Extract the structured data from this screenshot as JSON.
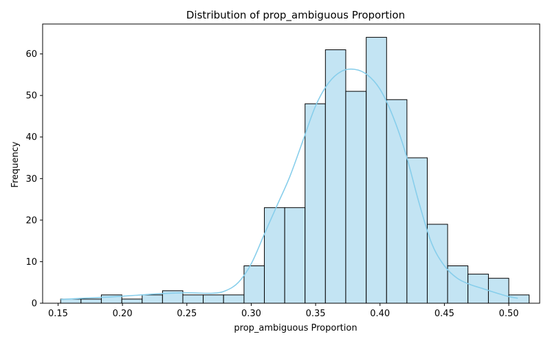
{
  "chart_data": {
    "type": "bar",
    "subtype": "histogram-with-kde",
    "title": "Distribution of prop_ambiguous Proportion",
    "xlabel": "prop_ambiguous Proportion",
    "ylabel": "Frequency",
    "xlim": [
      0.138,
      0.524
    ],
    "ylim": [
      0,
      67.2
    ],
    "x_ticks": [
      "0.15",
      "0.20",
      "0.25",
      "0.30",
      "0.35",
      "0.40",
      "0.45",
      "0.50"
    ],
    "y_ticks": [
      "0",
      "10",
      "20",
      "30",
      "40",
      "50",
      "60"
    ],
    "bin_edges": [
      0.152,
      0.1678,
      0.1836,
      0.1995,
      0.2153,
      0.2311,
      0.2469,
      0.2627,
      0.2785,
      0.2944,
      0.3102,
      0.326,
      0.3418,
      0.3576,
      0.3734,
      0.3893,
      0.4051,
      0.4209,
      0.4367,
      0.4525,
      0.4683,
      0.4842,
      0.5,
      0.5158
    ],
    "counts": [
      1,
      1,
      2,
      1,
      2,
      3,
      2,
      2,
      2,
      9,
      23,
      23,
      48,
      61,
      51,
      64,
      49,
      35,
      19,
      9,
      7,
      6,
      2
    ],
    "kde": {
      "x": [
        0.152,
        0.17,
        0.19,
        0.21,
        0.23,
        0.25,
        0.27,
        0.28,
        0.29,
        0.3,
        0.31,
        0.32,
        0.33,
        0.34,
        0.35,
        0.36,
        0.37,
        0.38,
        0.39,
        0.4,
        0.41,
        0.42,
        0.43,
        0.44,
        0.45,
        0.46,
        0.47,
        0.48,
        0.49,
        0.5,
        0.507
      ],
      "y": [
        0.9,
        1.2,
        1.5,
        1.9,
        2.3,
        2.5,
        2.4,
        3.0,
        5.0,
        9.5,
        16.5,
        23.5,
        30.5,
        39.0,
        47.5,
        53.0,
        55.8,
        56.3,
        55.0,
        51.5,
        45.0,
        36.0,
        24.5,
        14.5,
        9.0,
        6.0,
        4.5,
        3.5,
        2.5,
        1.6,
        1.2
      ]
    },
    "grid": false,
    "colors": {
      "bar_fill": "#c3e4f3",
      "bar_edge": "#000000",
      "kde_line": "#87ceeb"
    }
  }
}
